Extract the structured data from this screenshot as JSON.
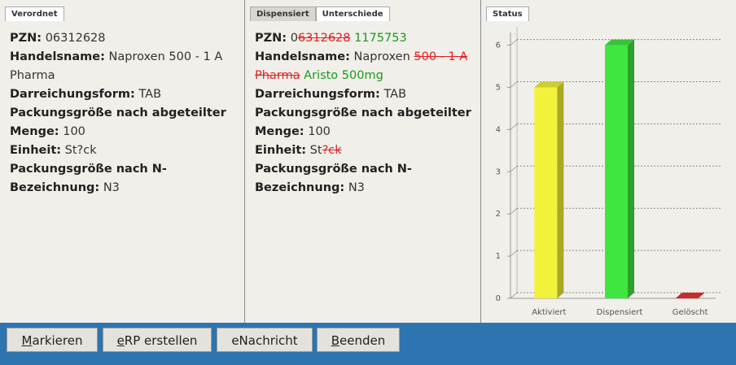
{
  "tabs": {
    "left": [
      "Verordnet"
    ],
    "middle": [
      "Dispensiert",
      "Unterschiede"
    ],
    "right": [
      "Status"
    ]
  },
  "verordnet": [
    {
      "label": "PZN:",
      "value": "06312628"
    },
    {
      "label": "Handelsname:",
      "value": "Naproxen 500 - 1 A Pharma"
    },
    {
      "label": "Darreichungsform:",
      "value": "TAB"
    },
    {
      "label": "Packungsgröße nach abgeteilter Menge:",
      "value": "100"
    },
    {
      "label": "Einheit:",
      "value": "St?ck"
    },
    {
      "label": "Packungsgröße nach N-Bezeichnung:",
      "value": "N3"
    }
  ],
  "unterschiede": [
    {
      "label": "PZN:",
      "parts": [
        {
          "text": "0",
          "kind": "same"
        },
        {
          "text": "6312628",
          "kind": "del"
        },
        {
          "text": "1175753",
          "kind": "ins"
        }
      ]
    },
    {
      "label": "Handelsname:",
      "parts": [
        {
          "text": "Naproxen",
          "kind": "same"
        },
        {
          "text": "500 - 1 A Pharma",
          "kind": "del"
        },
        {
          "text": "Aristo 500mg",
          "kind": "ins"
        }
      ]
    },
    {
      "label": "Darreichungsform:",
      "parts": [
        {
          "text": "TAB",
          "kind": "same"
        }
      ]
    },
    {
      "label": "Packungsgröße nach abgeteilter Menge:",
      "parts": [
        {
          "text": "100",
          "kind": "same"
        }
      ]
    },
    {
      "label": "Einheit:",
      "parts": [
        {
          "text": "St",
          "kind": "same"
        },
        {
          "text": "?ck",
          "kind": "del"
        }
      ]
    },
    {
      "label": "Packungsgröße nach N-Bezeichnung:",
      "parts": [
        {
          "text": "N3",
          "kind": "same"
        }
      ]
    }
  ],
  "buttons": [
    "Markieren",
    "eRP erstellen",
    "eNachricht",
    "Beenden"
  ],
  "chart_data": {
    "type": "bar3d",
    "categories": [
      "Aktiviert",
      "Dispensiert",
      "Gelöscht"
    ],
    "values": [
      5,
      6,
      0
    ],
    "colors": [
      "#f2f23a",
      "#3fe63f",
      "#e83434"
    ],
    "ylim": [
      0,
      6.3
    ],
    "yticks": [
      0,
      1,
      2,
      3,
      4,
      5,
      6
    ],
    "grid": true
  }
}
